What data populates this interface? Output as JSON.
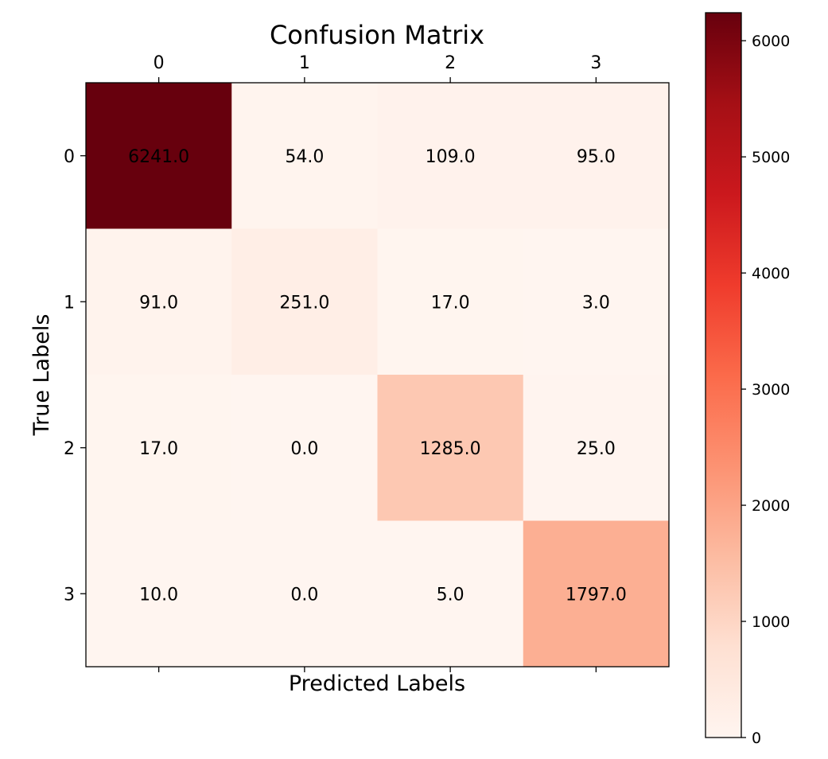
{
  "chart_data": {
    "type": "heatmap",
    "title": "Confusion Matrix",
    "xlabel": "Predicted Labels",
    "ylabel": "True Labels",
    "x_categories": [
      "0",
      "1",
      "2",
      "3"
    ],
    "y_categories": [
      "0",
      "1",
      "2",
      "3"
    ],
    "matrix": [
      [
        6241.0,
        54.0,
        109.0,
        95.0
      ],
      [
        91.0,
        251.0,
        17.0,
        3.0
      ],
      [
        17.0,
        0.0,
        1285.0,
        25.0
      ],
      [
        10.0,
        0.0,
        5.0,
        1797.0
      ]
    ],
    "value_labels": [
      [
        "6241.0",
        "54.0",
        "109.0",
        "95.0"
      ],
      [
        "91.0",
        "251.0",
        "17.0",
        "3.0"
      ],
      [
        "17.0",
        "0.0",
        "1285.0",
        "25.0"
      ],
      [
        "10.0",
        "0.0",
        "5.0",
        "1797.0"
      ]
    ],
    "colormap": "Reds",
    "colormap_stops": [
      "#fff5f0",
      "#fee0d2",
      "#fcbba1",
      "#fc9272",
      "#fb6a4a",
      "#ef3b2c",
      "#cb181d",
      "#a50f15",
      "#67000d"
    ],
    "color_range": [
      0,
      6241
    ],
    "colorbar": {
      "ticks": [
        0,
        1000,
        2000,
        3000,
        4000,
        5000,
        6000
      ],
      "tick_labels": [
        "0",
        "1000",
        "2000",
        "3000",
        "4000",
        "5000",
        "6000"
      ]
    },
    "x_tick_position": "top",
    "grid": false
  }
}
